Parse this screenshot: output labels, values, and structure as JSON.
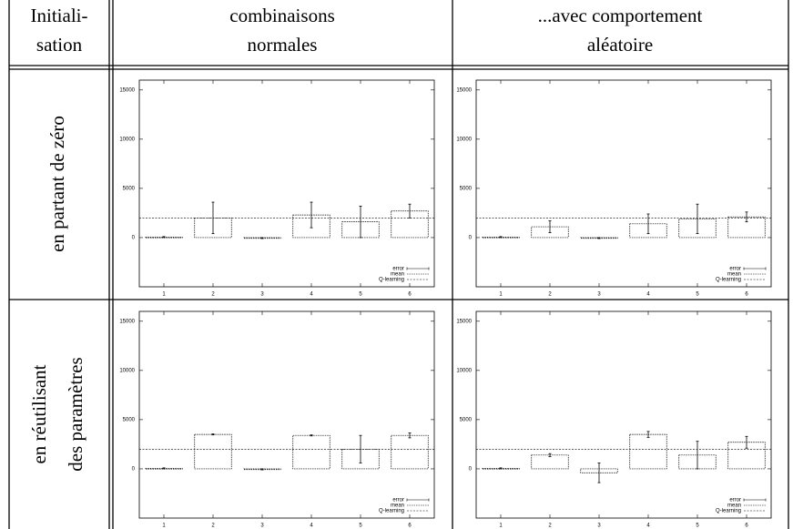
{
  "table": {
    "header": [
      [
        "Initiali-",
        "sation"
      ],
      [
        "combinaisons",
        "normales"
      ],
      [
        "...avec comportement",
        "aléatoire"
      ]
    ],
    "rows": [
      [
        "en partant de zéro"
      ],
      [
        "en réutilisant",
        "des paramètres"
      ]
    ]
  },
  "chart_data": [
    {
      "type": "bar",
      "categories": [
        "1",
        "2",
        "3",
        "4",
        "5",
        "6"
      ],
      "series": [
        {
          "name": "mean",
          "color": "#000000",
          "values": [
            50,
            2000,
            -50,
            2300,
            1600,
            2700
          ],
          "errors": [
            50,
            1600,
            50,
            1300,
            1600,
            700
          ]
        }
      ],
      "error_name": "error",
      "reference": {
        "name": "Q-learning",
        "value": 2000
      },
      "ylim": [
        -5000,
        16000
      ],
      "yticks": [
        0,
        5000,
        10000,
        15000
      ]
    },
    {
      "type": "bar",
      "categories": [
        "1",
        "2",
        "3",
        "4",
        "5",
        "6"
      ],
      "series": [
        {
          "name": "mean",
          "color": "#000000",
          "values": [
            50,
            1100,
            -50,
            1400,
            1900,
            2100
          ],
          "errors": [
            50,
            600,
            50,
            1000,
            1500,
            500
          ]
        }
      ],
      "error_name": "error",
      "reference": {
        "name": "Q-learning",
        "value": 2000
      },
      "ylim": [
        -5000,
        16000
      ],
      "yticks": [
        0,
        5000,
        10000,
        15000
      ]
    },
    {
      "type": "bar",
      "categories": [
        "1",
        "2",
        "3",
        "4",
        "5",
        "6"
      ],
      "series": [
        {
          "name": "mean",
          "color": "#000000",
          "values": [
            50,
            3500,
            -50,
            3400,
            2000,
            3400
          ],
          "errors": [
            50,
            50,
            50,
            50,
            1400,
            250
          ]
        }
      ],
      "error_name": "error",
      "reference": {
        "name": "Q-learning",
        "value": 2000
      },
      "ylim": [
        -5000,
        16000
      ],
      "yticks": [
        0,
        5000,
        10000,
        15000
      ]
    },
    {
      "type": "bar",
      "categories": [
        "1",
        "2",
        "3",
        "4",
        "5",
        "6"
      ],
      "series": [
        {
          "name": "mean",
          "color": "#000000",
          "values": [
            50,
            1400,
            -400,
            3500,
            1400,
            2700
          ],
          "errors": [
            50,
            150,
            1000,
            300,
            1400,
            600
          ]
        }
      ],
      "error_name": "error",
      "reference": {
        "name": "Q-learning",
        "value": 2000
      },
      "ylim": [
        -5000,
        16000
      ],
      "yticks": [
        0,
        5000,
        10000,
        15000
      ]
    }
  ]
}
